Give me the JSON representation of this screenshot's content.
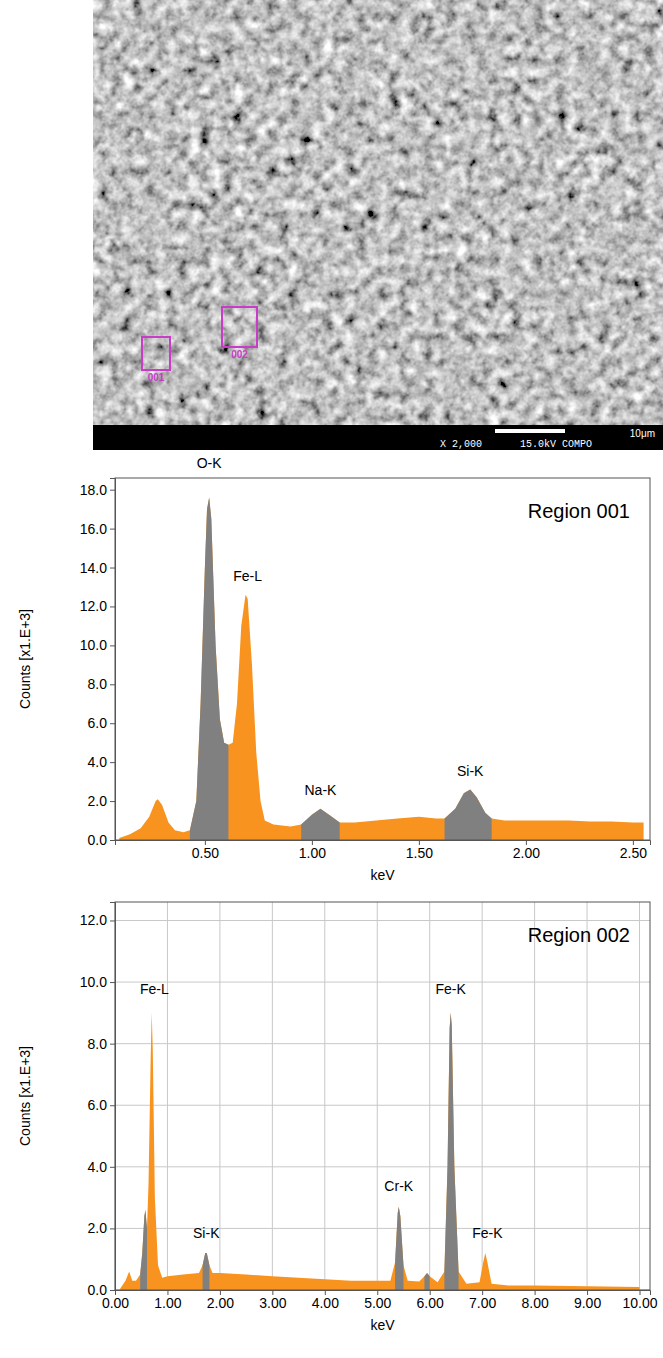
{
  "micrograph": {
    "regions": [
      "001",
      "002"
    ],
    "scale_bar": "10μm",
    "magnification": "X 2,000",
    "conditions": "15.0kV COMPO"
  },
  "chart_data": [
    {
      "type": "area",
      "title": "Region 001",
      "x_label": "keV",
      "y_label": "Counts [x1.E+3]",
      "x": [
        0.1,
        0.15,
        0.2,
        0.24,
        0.27,
        0.28,
        0.3,
        0.33,
        0.36,
        0.4,
        0.43,
        0.46,
        0.48,
        0.5,
        0.51,
        0.52,
        0.53,
        0.55,
        0.57,
        0.59,
        0.61,
        0.63,
        0.65,
        0.67,
        0.69,
        0.7,
        0.72,
        0.74,
        0.76,
        0.78,
        0.82,
        0.9,
        0.95,
        1.0,
        1.04,
        1.08,
        1.13,
        1.2,
        1.3,
        1.4,
        1.5,
        1.58,
        1.62,
        1.67,
        1.71,
        1.74,
        1.77,
        1.81,
        1.84,
        1.9,
        2.0,
        2.1,
        2.2,
        2.3,
        2.4,
        2.5,
        2.55
      ],
      "series": [
        {
          "color": "#f7931e",
          "values": [
            0.1,
            0.3,
            0.6,
            1.2,
            2.0,
            2.1,
            1.8,
            0.9,
            0.5,
            0.4,
            0.5,
            2.0,
            7.0,
            14.0,
            17.0,
            17.6,
            16.5,
            10.0,
            6.2,
            5.0,
            4.9,
            5.0,
            7.0,
            11.0,
            12.6,
            12.4,
            9.0,
            4.5,
            2.0,
            1.0,
            0.8,
            0.7,
            0.8,
            1.3,
            1.6,
            1.3,
            0.9,
            0.9,
            1.0,
            1.1,
            1.2,
            1.1,
            1.1,
            1.6,
            2.4,
            2.6,
            2.2,
            1.4,
            1.1,
            1.0,
            1.0,
            1.0,
            1.0,
            0.95,
            0.95,
            0.9,
            0.9
          ]
        },
        {
          "color": "#808080",
          "values": [
            null,
            null,
            null,
            null,
            null,
            null,
            null,
            null,
            null,
            null,
            0.5,
            2.0,
            7.0,
            14.0,
            17.0,
            17.6,
            16.5,
            10.0,
            6.2,
            5.0,
            4.9,
            null,
            null,
            null,
            null,
            null,
            null,
            null,
            null,
            null,
            null,
            null,
            0.8,
            1.3,
            1.6,
            1.3,
            0.9,
            null,
            null,
            null,
            null,
            null,
            1.1,
            1.6,
            2.4,
            2.6,
            2.2,
            1.4,
            1.1,
            null,
            null,
            null,
            null,
            null,
            null,
            null,
            null
          ]
        }
      ],
      "xlim": [
        0.08,
        2.58
      ],
      "xticks": [
        {
          "value": 0.5,
          "label": "0.50"
        },
        {
          "value": 1,
          "label": "1.00"
        },
        {
          "value": 1.5,
          "label": "1.50"
        },
        {
          "value": 2,
          "label": "2.00"
        },
        {
          "value": 2.5,
          "label": "2.50"
        }
      ],
      "ylim": [
        0,
        18.6
      ],
      "yticks": [
        {
          "value": 0,
          "label": "0.0"
        },
        {
          "value": 2,
          "label": "2.0"
        },
        {
          "value": 4,
          "label": "4.0"
        },
        {
          "value": 6,
          "label": "6.0"
        },
        {
          "value": 8,
          "label": "8.0"
        },
        {
          "value": 10,
          "label": "10.0"
        },
        {
          "value": 12,
          "label": "12.0"
        },
        {
          "value": 14,
          "label": "14.0"
        },
        {
          "value": 16,
          "label": "16.0"
        },
        {
          "value": 18,
          "label": "18.0"
        }
      ],
      "grid": false,
      "annotations": [
        {
          "text": "O-K",
          "x": 0.52,
          "y": 19.1
        },
        {
          "text": "Fe-L",
          "x": 0.7,
          "y": 13.3
        },
        {
          "text": "Na-K",
          "x": 1.04,
          "y": 2.3
        },
        {
          "text": "Si-K",
          "x": 1.74,
          "y": 3.3
        }
      ]
    },
    {
      "type": "area",
      "title": "Region 002",
      "x_label": "keV",
      "y_label": "Counts [x1.E+3]",
      "x": [
        0.1,
        0.2,
        0.27,
        0.33,
        0.4,
        0.48,
        0.52,
        0.56,
        0.58,
        0.61,
        0.64,
        0.68,
        0.7,
        0.72,
        0.76,
        0.82,
        0.9,
        1.0,
        1.3,
        1.6,
        1.67,
        1.72,
        1.75,
        1.8,
        1.86,
        2.0,
        2.5,
        3.0,
        3.5,
        4.0,
        4.5,
        5.0,
        5.25,
        5.34,
        5.39,
        5.41,
        5.44,
        5.5,
        5.58,
        5.8,
        5.9,
        5.95,
        6.0,
        6.15,
        6.28,
        6.34,
        6.38,
        6.4,
        6.42,
        6.47,
        6.55,
        6.7,
        6.95,
        7.02,
        7.06,
        7.1,
        7.18,
        7.5,
        8.0,
        9.0,
        10.0
      ],
      "series": [
        {
          "color": "#f7931e",
          "values": [
            0.05,
            0.3,
            0.6,
            0.3,
            0.3,
            0.5,
            1.2,
            2.4,
            2.6,
            2.0,
            3.5,
            7.5,
            9.0,
            7.8,
            3.0,
            0.8,
            0.4,
            0.45,
            0.5,
            0.55,
            0.8,
            1.2,
            1.2,
            0.8,
            0.55,
            0.55,
            0.5,
            0.45,
            0.4,
            0.35,
            0.3,
            0.3,
            0.3,
            0.9,
            2.5,
            2.7,
            2.4,
            0.8,
            0.3,
            0.28,
            0.45,
            0.55,
            0.45,
            0.25,
            0.6,
            4.0,
            8.5,
            9.0,
            8.6,
            4.0,
            0.6,
            0.2,
            0.25,
            0.9,
            1.2,
            0.9,
            0.2,
            0.15,
            0.15,
            0.12,
            0.1
          ]
        },
        {
          "color": "#808080",
          "values": [
            null,
            null,
            null,
            null,
            null,
            0.5,
            1.2,
            2.4,
            2.6,
            2.0,
            null,
            null,
            null,
            null,
            null,
            null,
            null,
            null,
            null,
            null,
            0.8,
            1.2,
            1.2,
            0.8,
            null,
            null,
            null,
            null,
            null,
            null,
            null,
            null,
            null,
            0.9,
            2.5,
            2.7,
            2.4,
            0.8,
            null,
            null,
            0.45,
            0.55,
            0.45,
            null,
            0.6,
            4.0,
            8.5,
            9.0,
            8.6,
            4.0,
            0.6,
            null,
            null,
            null,
            null,
            null,
            null,
            null,
            null,
            null,
            null
          ]
        }
      ],
      "xlim": [
        0,
        10.2
      ],
      "xticks": [
        {
          "value": 0,
          "label": "0.00"
        },
        {
          "value": 1,
          "label": "1.00"
        },
        {
          "value": 2,
          "label": "2.00"
        },
        {
          "value": 3,
          "label": "3.00"
        },
        {
          "value": 4,
          "label": "4.00"
        },
        {
          "value": 5,
          "label": "5.00"
        },
        {
          "value": 6,
          "label": "6.00"
        },
        {
          "value": 7,
          "label": "7.00"
        },
        {
          "value": 8,
          "label": "8.00"
        },
        {
          "value": 9,
          "label": "9.00"
        },
        {
          "value": 10,
          "label": "10.00"
        }
      ],
      "ylim": [
        0,
        12.6
      ],
      "yticks": [
        {
          "value": 0,
          "label": "0.0"
        },
        {
          "value": 2,
          "label": "2.0"
        },
        {
          "value": 4,
          "label": "4.0"
        },
        {
          "value": 6,
          "label": "6.0"
        },
        {
          "value": 8,
          "label": "8.0"
        },
        {
          "value": 10,
          "label": "10.0"
        },
        {
          "value": 12,
          "label": "12.0"
        }
      ],
      "grid": true,
      "annotations": [
        {
          "text": "Fe-L",
          "x": 0.75,
          "y": 9.6
        },
        {
          "text": "Si-K",
          "x": 1.74,
          "y": 1.7
        },
        {
          "text": "Cr-K",
          "x": 5.41,
          "y": 3.2
        },
        {
          "text": "Fe-K",
          "x": 6.4,
          "y": 9.6
        },
        {
          "text": "Fe-K",
          "x": 7.1,
          "y": 1.7
        }
      ]
    }
  ]
}
